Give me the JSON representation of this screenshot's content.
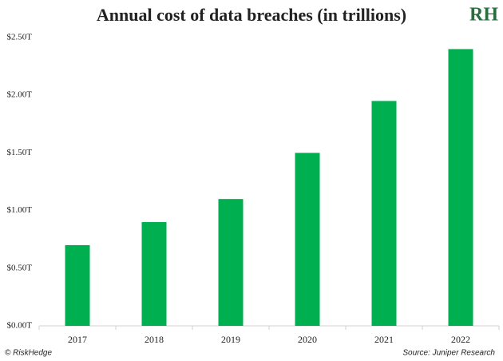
{
  "chart_data": {
    "type": "bar",
    "title": "Annual cost of data breaches (in trillions)",
    "logo": "RH",
    "categories": [
      "2017",
      "2018",
      "2019",
      "2020",
      "2021",
      "2022"
    ],
    "values": [
      0.7,
      0.9,
      1.1,
      1.5,
      1.95,
      2.4
    ],
    "color": "#00b050",
    "ylim": [
      0,
      2.5
    ],
    "yticks": [
      {
        "value": 0,
        "label": "$0.00T"
      },
      {
        "value": 0.5,
        "label": "$0.50T"
      },
      {
        "value": 1,
        "label": "$1.00T"
      },
      {
        "value": 1.5,
        "label": "$1.50T"
      },
      {
        "value": 2,
        "label": "$2.00T"
      },
      {
        "value": 2.5,
        "label": "$2.50T"
      }
    ],
    "grid": false,
    "footer_left": "© RiskHedge",
    "footer_right": "Source: Juniper Research"
  }
}
